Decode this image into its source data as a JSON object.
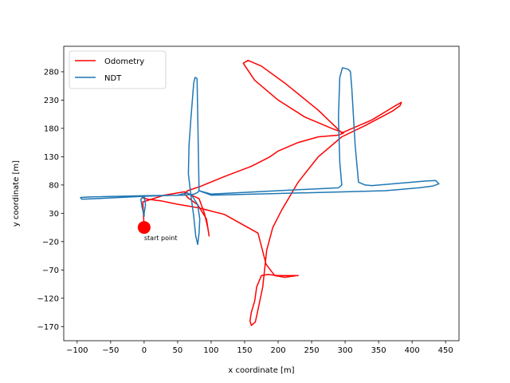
{
  "chart_data": {
    "type": "line",
    "title": "",
    "xlabel": "x coordinate [m]",
    "ylabel": "y coordinate [m]",
    "xlim": [
      -120,
      470
    ],
    "ylim": [
      -195,
      325
    ],
    "xticks": [
      -100,
      -50,
      0,
      50,
      100,
      150,
      200,
      250,
      300,
      350,
      400,
      450
    ],
    "yticks": [
      -170,
      -120,
      -70,
      -20,
      30,
      80,
      130,
      180,
      230,
      280
    ],
    "grid": false,
    "legend": {
      "placement": "top-left",
      "entries": [
        "Odometry",
        "NDT"
      ]
    },
    "series": [
      {
        "name": "Odometry",
        "color": "#ff0000",
        "x": [
          0,
          -2,
          30,
          60,
          82,
          90,
          95,
          97,
          93,
          80,
          65,
          60,
          65,
          85,
          120,
          160,
          188,
          200,
          230,
          260,
          290,
          298,
          280,
          240,
          200,
          165,
          148,
          155,
          175,
          210,
          260,
          295,
          340,
          375,
          384,
          382,
          370,
          330,
          295,
          260,
          230,
          205,
          192,
          183,
          177,
          170,
          166,
          160,
          158,
          160,
          165,
          168,
          175,
          185,
          200,
          230,
          228,
          210,
          195,
          182,
          170,
          120,
          80,
          65,
          50,
          25,
          5,
          -3,
          0,
          0
        ],
        "y": [
          5,
          50,
          62,
          68,
          56,
          30,
          5,
          -10,
          20,
          45,
          58,
          65,
          70,
          78,
          95,
          113,
          130,
          140,
          155,
          165,
          168,
          172,
          180,
          200,
          230,
          265,
          295,
          300,
          290,
          260,
          212,
          172,
          195,
          220,
          226,
          220,
          210,
          185,
          165,
          130,
          85,
          35,
          5,
          -35,
          -100,
          -140,
          -162,
          -168,
          -160,
          -145,
          -125,
          -100,
          -80,
          -78,
          -80,
          -80,
          -80,
          -83,
          -80,
          -60,
          -5,
          28,
          40,
          43,
          46,
          52,
          55,
          58,
          60,
          56
        ]
      },
      {
        "name": "NDT",
        "color": "#1f77b4",
        "x": [
          0,
          -3,
          -5,
          0,
          50,
          60,
          65,
          72,
          80,
          83,
          82,
          80,
          77,
          74,
          70,
          66,
          67,
          70,
          72,
          74,
          76,
          79,
          82,
          100,
          200,
          290,
          295,
          292,
          290,
          292,
          296,
          300,
          305,
          308,
          310,
          315,
          320,
          330,
          340,
          420,
          435,
          440,
          430,
          410,
          360,
          300,
          200,
          100,
          82,
          80,
          75,
          60,
          0,
          -80,
          -95,
          -93,
          -70,
          0,
          2,
          0,
          0
        ],
        "y": [
          25,
          40,
          55,
          60,
          62,
          65,
          66,
          60,
          45,
          20,
          -5,
          -25,
          -10,
          25,
          60,
          100,
          150,
          200,
          230,
          260,
          270,
          268,
          70,
          64,
          70,
          75,
          80,
          120,
          200,
          270,
          287,
          286,
          284,
          280,
          250,
          150,
          85,
          80,
          79,
          87,
          88,
          82,
          78,
          75,
          70,
          68,
          65,
          62,
          70,
          67,
          64,
          62,
          61,
          59,
          58,
          55,
          56,
          60,
          45,
          30,
          25
        ]
      }
    ],
    "annotations": [
      {
        "text": "start point",
        "x": 0,
        "y": 5,
        "marker_color": "#ff0000"
      }
    ]
  }
}
